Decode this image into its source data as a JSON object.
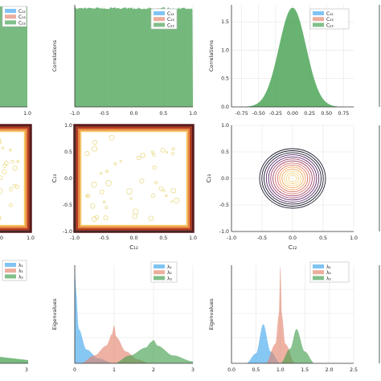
{
  "figure": {
    "series_labels_corr": [
      "C₁₂",
      "C₁₃",
      "C₂₃"
    ],
    "series_labels_eig": [
      "λ₁",
      "λ₂",
      "λ₃"
    ],
    "series_colors": [
      "#3da4ee",
      "#e2826a",
      "#3f9d4a"
    ],
    "contour_colors": [
      "#1b1b2f",
      "#5b2a6b",
      "#a0476e",
      "#d7736a",
      "#f0a85e",
      "#f7d98c"
    ]
  },
  "chart_data": [
    {
      "panel": "row1-col1",
      "type": "area",
      "x_ticks": [
        "1.0"
      ],
      "legend": [
        "C₁₂",
        "C₁₃",
        "C₂₃"
      ],
      "legend_position": "top-right",
      "grid": true
    },
    {
      "panel": "row1-col2",
      "type": "area",
      "ylabel": "Correlations",
      "xlim": [
        -1,
        1
      ],
      "x_ticks": [
        "-1.0",
        "-0.5",
        "0.0",
        "0.5",
        "1.0"
      ],
      "legend": [
        "C₁₂",
        "C₁₃",
        "C₂₃"
      ],
      "legend_position": "top-right",
      "grid": true,
      "series": [
        {
          "name": "C₂₃",
          "x": [
            -1,
            1
          ],
          "y": [
            1.0,
            1.0
          ]
        }
      ]
    },
    {
      "panel": "row1-col3",
      "type": "area",
      "ylabel": "Correlations",
      "xlim": [
        -0.9,
        0.9
      ],
      "ylim": [
        0,
        1.8
      ],
      "x_ticks": [
        "-0.75",
        "-0.50",
        "-0.25",
        "0.00",
        "0.25",
        "0.50",
        "0.75"
      ],
      "y_ticks": [
        "0.0",
        "0.5",
        "1.0",
        "1.5"
      ],
      "legend": [
        "C₁₂",
        "C₁₃",
        "C₂₃"
      ],
      "legend_position": "top-right",
      "grid": true,
      "series": [
        {
          "name": "C₂₃",
          "x": [
            -0.8,
            -0.6,
            -0.4,
            -0.2,
            0.0,
            0.2,
            0.4,
            0.6,
            0.8
          ],
          "y": [
            0.02,
            0.13,
            0.48,
            1.2,
            1.75,
            1.2,
            0.48,
            0.13,
            0.02
          ]
        }
      ]
    },
    {
      "panel": "row2-col1",
      "type": "heatmap",
      "x_ticks": [
        "0",
        "1.0"
      ],
      "y_ticks": [],
      "grid": true
    },
    {
      "panel": "row2-col2",
      "type": "heatmap",
      "xlabel": "C₁₂",
      "ylabel": "C₁₃",
      "xlim": [
        -1,
        1
      ],
      "ylim": [
        -1,
        1
      ],
      "x_ticks": [
        "-1.0",
        "-0.5",
        "0.0",
        "0.5",
        "1.0"
      ],
      "y_ticks": [
        "-1.0",
        "-0.5",
        "0.0",
        "0.5",
        "1.0"
      ],
      "grid": true
    },
    {
      "panel": "row2-col3",
      "type": "heatmap",
      "xlabel": "C₁₂",
      "ylabel": "C₁₃",
      "xlim": [
        -1,
        1
      ],
      "ylim": [
        -1,
        1
      ],
      "x_ticks": [
        "-1.0",
        "-0.5",
        "0.0",
        "0.5",
        "1.0"
      ],
      "y_ticks": [
        "-1.0",
        "-0.5",
        "0.0",
        "0.5",
        "1.0"
      ],
      "grid": true
    },
    {
      "panel": "row3-col1",
      "type": "area",
      "x_ticks": [
        "3"
      ],
      "legend": [
        "λ₁",
        "λ₂",
        "λ₃"
      ],
      "legend_position": "top-right",
      "grid": true
    },
    {
      "panel": "row3-col2",
      "type": "area",
      "ylabel": "Eigenvalues",
      "xlim": [
        0,
        3
      ],
      "x_ticks": [
        "0",
        "1",
        "2",
        "3"
      ],
      "legend": [
        "λ₁",
        "λ₂",
        "λ₃"
      ],
      "legend_position": "top-right",
      "grid": true,
      "series": [
        {
          "name": "λ₁",
          "x": [
            0.0,
            0.03,
            0.1,
            0.3,
            0.6,
            1.0
          ],
          "y": [
            1.0,
            0.75,
            0.35,
            0.14,
            0.05,
            0.0
          ]
        },
        {
          "name": "λ₂",
          "x": [
            0.15,
            0.5,
            0.8,
            0.95,
            1.0,
            1.05,
            1.3,
            1.6,
            1.9
          ],
          "y": [
            0.0,
            0.08,
            0.18,
            0.3,
            0.4,
            0.27,
            0.12,
            0.04,
            0.0
          ]
        },
        {
          "name": "λ₃",
          "x": [
            1.0,
            1.4,
            1.8,
            1.95,
            2.0,
            2.1,
            2.5,
            3.0
          ],
          "y": [
            0.0,
            0.08,
            0.16,
            0.22,
            0.24,
            0.18,
            0.08,
            0.02
          ]
        }
      ]
    },
    {
      "panel": "row3-col3",
      "type": "area",
      "ylabel": "Eigenvalues",
      "xlim": [
        0,
        2.5
      ],
      "x_ticks": [
        "0.0",
        "0.5",
        "1.0",
        "1.5",
        "2.0",
        "2.5"
      ],
      "legend": [
        "λ₁",
        "λ₂",
        "λ₃"
      ],
      "legend_position": "top-right",
      "grid": true,
      "series": [
        {
          "name": "λ₁",
          "x": [
            0.3,
            0.5,
            0.65,
            0.8,
            1.0
          ],
          "y": [
            0.0,
            0.1,
            0.4,
            0.12,
            0.0
          ]
        },
        {
          "name": "λ₂",
          "x": [
            0.7,
            0.9,
            0.97,
            1.0,
            1.03,
            1.1,
            1.3
          ],
          "y": [
            0.0,
            0.2,
            0.5,
            1.0,
            0.5,
            0.2,
            0.0
          ]
        },
        {
          "name": "λ₃",
          "x": [
            1.0,
            1.2,
            1.33,
            1.5,
            1.7
          ],
          "y": [
            0.0,
            0.15,
            0.35,
            0.12,
            0.0
          ]
        }
      ]
    }
  ]
}
